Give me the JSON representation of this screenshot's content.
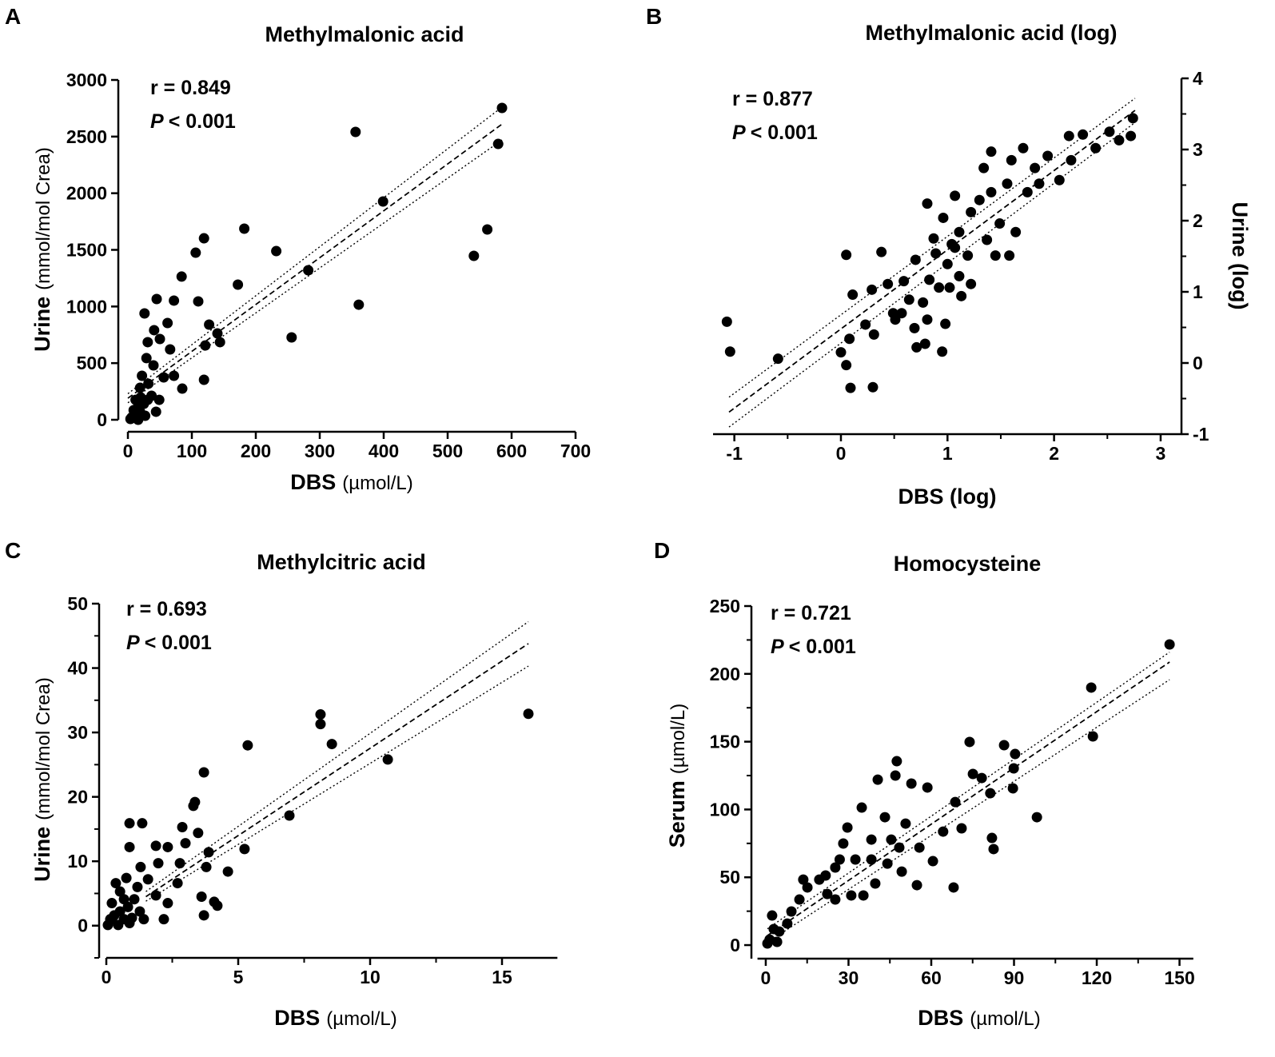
{
  "chart_data": [
    {
      "type": "scatter",
      "panel_label": "A",
      "title": "Methylmalonic acid",
      "r_text": "r = 0.849",
      "p_symbol": "P",
      "p_value": "< 0.001",
      "xlabel": {
        "text": "DBS",
        "unit": "(µmol/L)"
      },
      "ylabel": {
        "text": "Urine",
        "unit": "(mmol/mol Crea)"
      },
      "xlim": [
        0,
        700
      ],
      "ylim": [
        0,
        3000
      ],
      "xticks": [
        0,
        100,
        200,
        300,
        400,
        500,
        600,
        700
      ],
      "yticks": [
        0,
        500,
        1000,
        1500,
        2000,
        2500,
        3000
      ],
      "y_axis_side": "left",
      "color": "#000000",
      "x": [
        585,
        579,
        356,
        399,
        562,
        541,
        361,
        282,
        232,
        182,
        172,
        256,
        119,
        106,
        84,
        110,
        127,
        121,
        140,
        144,
        119,
        45,
        72,
        62,
        66,
        41,
        50,
        31,
        40,
        56,
        72,
        85,
        26,
        29,
        22,
        20,
        15,
        10,
        6,
        4,
        12,
        19,
        32,
        25,
        37,
        44,
        19,
        9,
        31,
        16,
        27,
        49
      ],
      "values": [
        2753,
        2435,
        2541,
        1927,
        1680,
        1447,
        1016,
        1320,
        1489,
        1687,
        1193,
        727,
        1602,
        1475,
        1264,
        1045,
        840,
        656,
        762,
        685,
        353,
        1066,
        1052,
        854,
        621,
        791,
        713,
        685,
        480,
        374,
        388,
        275,
        939,
        544,
        388,
        198,
        106,
        35,
        21,
        7,
        176,
        282,
        318,
        141,
        212,
        71,
        71,
        85,
        176,
        0,
        35,
        176
      ],
      "fit": {
        "x": [
          0,
          585
        ],
        "values": [
          190,
          2610
        ]
      },
      "ci_upper": {
        "x": [
          0,
          585
        ],
        "values": [
          230,
          2760
        ]
      },
      "ci_lower": {
        "x": [
          0,
          585
        ],
        "values": [
          150,
          2470
        ]
      }
    },
    {
      "type": "scatter",
      "panel_label": "B",
      "title": "Methylmalonic acid (log)",
      "r_text": "r = 0.877",
      "p_symbol": "P",
      "p_value": "< 0.001",
      "xlabel": {
        "text": "DBS (log)"
      },
      "ylabel": {
        "text": "Urine (log)"
      },
      "xlim": [
        -1.2,
        3.2
      ],
      "ylim": [
        -1,
        4
      ],
      "xticks": [
        -1,
        0,
        1,
        2,
        3
      ],
      "yticks": [
        -1,
        0,
        1,
        2,
        3,
        4
      ],
      "xticks_minor": [
        -0.5,
        0.5,
        1.5,
        2.5
      ],
      "yticks_minor": [
        -0.5,
        0.5,
        1.5,
        2.5,
        3.5
      ],
      "y_axis_side": "right",
      "color": "#000000",
      "x": [
        -1.07,
        -1.04,
        -0.59,
        0.05,
        0,
        0.05,
        0.08,
        0.11,
        0.09,
        0.23,
        0.3,
        0.31,
        0.29,
        0.38,
        0.44,
        0.49,
        0.59,
        0.57,
        0.64,
        0.69,
        0.71,
        0.79,
        0.81,
        0.77,
        0.83,
        0.89,
        0.87,
        0.96,
        0.81,
        1.07,
        1,
        0.92,
        1.04,
        1.11,
        1.19,
        1.22,
        1.3,
        1.37,
        1.22,
        1.41,
        1.49,
        1.56,
        1.64,
        1.6,
        1.71,
        1.82,
        1.94,
        2.05,
        2.16,
        2.27,
        2.39,
        2.52,
        2.61,
        2.74,
        2.72,
        2.14,
        1.86,
        1.75,
        1.41,
        1.34,
        1.07,
        0.7,
        0.51,
        0.95,
        0.98,
        1.13,
        1.02,
        1.58,
        1.45,
        1.11
      ],
      "values": [
        0.58,
        0.16,
        0.06,
        1.52,
        0.15,
        -0.03,
        0.34,
        0.96,
        -0.35,
        0.54,
        -0.34,
        0.4,
        1.03,
        1.56,
        1.11,
        0.7,
        1.15,
        0.7,
        0.89,
        0.49,
        0.22,
        0.27,
        0.61,
        0.85,
        1.17,
        1.54,
        1.75,
        2.04,
        2.24,
        2.35,
        1.39,
        1.06,
        1.67,
        1.84,
        1.51,
        2.12,
        2.29,
        1.73,
        1.11,
        2.4,
        1.96,
        2.52,
        1.84,
        2.85,
        3.02,
        2.74,
        2.91,
        2.57,
        2.85,
        3.21,
        3.02,
        3.25,
        3.13,
        3.44,
        3.19,
        3.19,
        2.52,
        2.4,
        2.97,
        2.74,
        1.62,
        1.45,
        0.61,
        0.16,
        0.55,
        0.94,
        1.06,
        1.51,
        1.51,
        1.22
      ],
      "fit": {
        "x": [
          -1.05,
          2.76
        ],
        "values": [
          -0.69,
          3.55
        ]
      },
      "ci_upper": {
        "x": [
          -1.05,
          2.76
        ],
        "values": [
          -0.48,
          3.72
        ]
      },
      "ci_lower": {
        "x": [
          -1.05,
          2.76
        ],
        "values": [
          -0.9,
          3.38
        ]
      }
    },
    {
      "type": "scatter",
      "panel_label": "C",
      "title": "Methylcitric acid",
      "r_text": "r = 0.693",
      "p_symbol": "P",
      "p_value": "< 0.001",
      "xlabel": {
        "text": "DBS",
        "unit": "(µmol/L)"
      },
      "ylabel": {
        "text": "Urine",
        "unit": "(mmol/mol Crea)"
      },
      "xlim": [
        0,
        17.1
      ],
      "ylim": [
        -5,
        50
      ],
      "xticks": [
        0,
        5,
        10,
        15
      ],
      "yticks": [
        0,
        10,
        20,
        30,
        40,
        50
      ],
      "xticks_minor": [
        2.5,
        7.5,
        12.5
      ],
      "yticks_minor": [
        -5,
        5,
        15,
        25,
        35,
        45
      ],
      "y_axis_side": "left",
      "color": "#000000",
      "x": [
        16,
        10.67,
        8.55,
        8.12,
        8.12,
        6.94,
        5.36,
        5.24,
        4.61,
        4.21,
        4.09,
        3.88,
        3.79,
        3.7,
        3.7,
        3.61,
        3.36,
        3.3,
        3.48,
        3,
        2.88,
        2.7,
        2.79,
        2.33,
        1.88,
        1.97,
        2.33,
        2.18,
        1.36,
        0.88,
        0.88,
        1.3,
        1.58,
        1.88,
        1.42,
        1.18,
        0.76,
        0.52,
        0.36,
        0.21,
        0.15,
        0.06,
        0.3,
        0.52,
        0.67,
        0.82,
        0.97,
        1.06,
        0.67,
        0.45,
        0.88,
        1.27,
        0.21
      ],
      "values": [
        32.9,
        25.8,
        28.2,
        32.8,
        31.3,
        17.1,
        28,
        11.9,
        8.4,
        3.1,
        3.7,
        11.4,
        9.1,
        23.8,
        1.6,
        4.5,
        19.2,
        18.6,
        14.4,
        12.8,
        15.3,
        6.6,
        9.7,
        12.2,
        12.4,
        9.7,
        3.5,
        1,
        15.9,
        15.9,
        12.2,
        9.1,
        7.2,
        4.7,
        1,
        6,
        7.4,
        5.3,
        6.6,
        3.5,
        1,
        0.1,
        1.6,
        2.2,
        1,
        2.9,
        1.2,
        4.1,
        4.1,
        0.1,
        0.4,
        2.2,
        1
      ],
      "fit": {
        "x": [
          1.5,
          16
        ],
        "values": [
          4.5,
          43.8
        ]
      },
      "ci_upper": {
        "x": [
          1.5,
          16
        ],
        "values": [
          5.3,
          47.2
        ]
      },
      "ci_lower": {
        "x": [
          1.5,
          16
        ],
        "values": [
          3.8,
          40.3
        ]
      }
    },
    {
      "type": "scatter",
      "panel_label": "D",
      "title": "Homocysteine",
      "r_text": "r = 0.721",
      "p_symbol": "P",
      "p_value": "< 0.001",
      "xlabel": {
        "text": "DBS",
        "unit": "(µmol/L)"
      },
      "ylabel": {
        "text": "Serum",
        "unit": "(µmol/L)"
      },
      "xlim": [
        -3,
        155
      ],
      "ylim": [
        -10,
        250
      ],
      "xticks": [
        0,
        30,
        60,
        90,
        120,
        150
      ],
      "yticks": [
        0,
        50,
        100,
        150,
        200,
        250
      ],
      "xticks_minor": [
        15,
        45,
        75,
        105,
        135
      ],
      "yticks_minor": [
        25,
        75,
        125,
        175,
        225
      ],
      "y_axis_side": "left",
      "color": "#000000",
      "x": [
        146.4,
        118,
        118.6,
        98.3,
        90.4,
        89.9,
        89.6,
        86.4,
        81.4,
        82,
        82.6,
        75.1,
        73.9,
        78.3,
        68.7,
        68.1,
        71,
        64.3,
        60.6,
        58.6,
        52.8,
        47.5,
        47,
        50.7,
        49.3,
        54.8,
        43.2,
        40.6,
        38.3,
        34.8,
        29.6,
        26.8,
        25.2,
        21.7,
        19.4,
        15.1,
        13.6,
        12.2,
        9.3,
        7.8,
        4.9,
        2.9,
        2.3,
        1.4,
        0.6,
        4.1,
        22.3,
        25.2,
        31,
        35.4,
        39.7,
        44.1,
        48.4,
        55.7,
        32.5,
        38.3,
        45.5,
        28.1
      ],
      "values": [
        221.7,
        189.9,
        153.9,
        94.3,
        140.9,
        130.3,
        115.6,
        147.4,
        112,
        79,
        70.8,
        126.2,
        149.8,
        123.2,
        105.5,
        42.5,
        86.1,
        83.7,
        61.9,
        116.2,
        119.1,
        135.6,
        125,
        89.6,
        54.2,
        44.2,
        94.3,
        122,
        77.8,
        101.4,
        86.7,
        63.1,
        57.2,
        51.3,
        48.3,
        42.5,
        48.3,
        33.6,
        24.8,
        15.9,
        10,
        11.8,
        21.8,
        4.1,
        1.2,
        2.4,
        37.7,
        33.6,
        36.6,
        36.6,
        45.4,
        60.1,
        71.9,
        71.9,
        63.1,
        63.1,
        77.8,
        74.9
      ],
      "fit": {
        "x": [
          0.6,
          146.4
        ],
        "values": [
          7,
          208.7
        ]
      },
      "ci_upper": {
        "x": [
          0.6,
          146.4
        ],
        "values": [
          12,
          216
        ]
      },
      "ci_lower": {
        "x": [
          0.6,
          146.4
        ],
        "values": [
          2,
          195.7
        ]
      }
    }
  ]
}
